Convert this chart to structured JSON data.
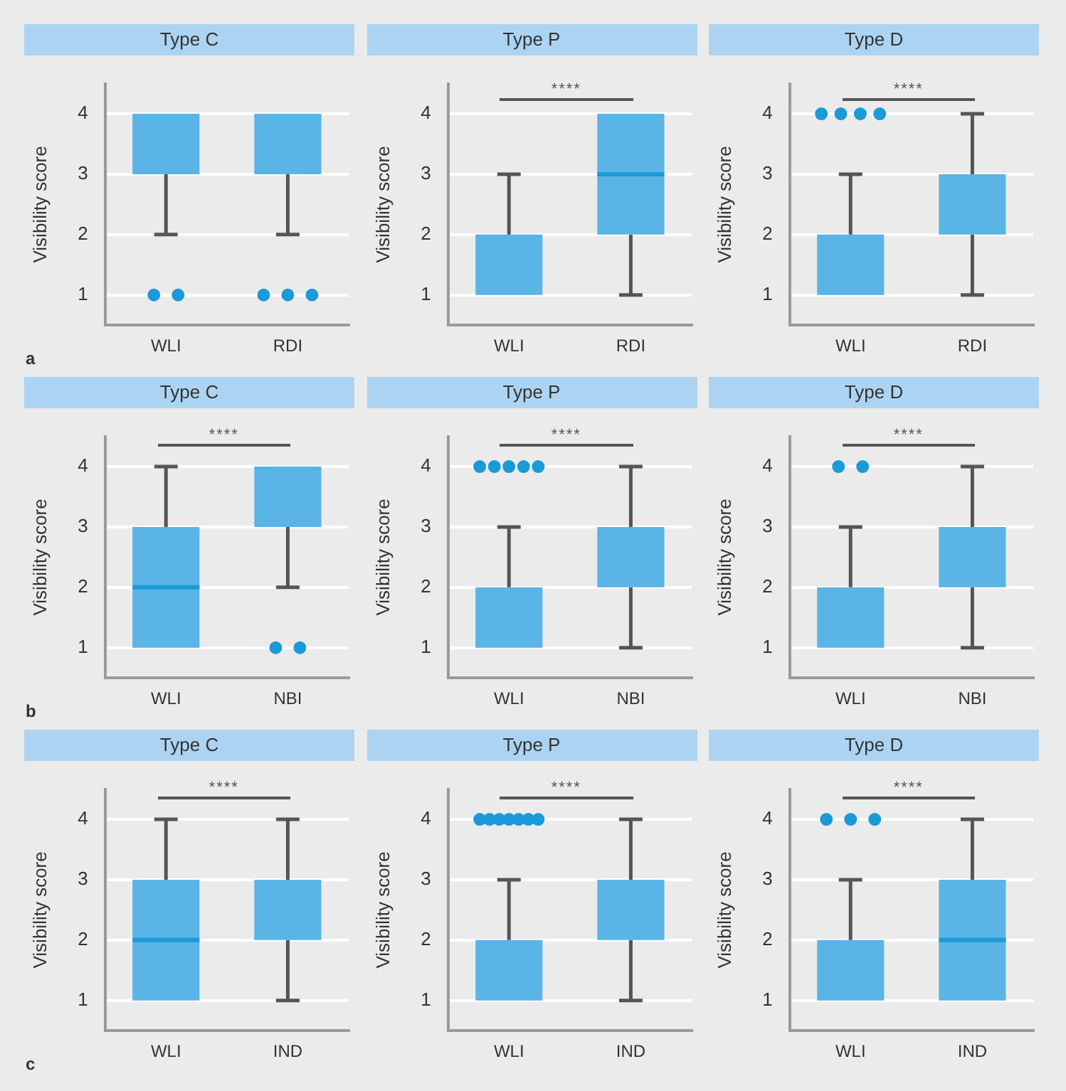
{
  "chart_data": [
    {
      "type": "box",
      "title": "Type C",
      "ylabel": "Visibility score",
      "categories": [
        "WLI",
        "RDI"
      ],
      "ylim": [
        0.5,
        4.5
      ],
      "yticks": [
        1,
        2,
        3,
        4
      ],
      "grid": "y",
      "annotations": [
        "a"
      ],
      "series": [
        {
          "color": "#5ab4e6",
          "boxes": [
            {
              "low": 2,
              "q1": 3,
              "median": 3,
              "q3": 4,
              "high": 4,
              "outliers": [
                1,
                1
              ]
            },
            {
              "low": 2,
              "q1": 3,
              "median": 3,
              "q3": 4,
              "high": 4,
              "outliers": [
                1,
                1,
                1
              ]
            }
          ]
        }
      ]
    },
    {
      "type": "box",
      "title": "Type P",
      "ylabel": "Visibility score",
      "categories": [
        "WLI",
        "RDI"
      ],
      "ylim": [
        0.5,
        4.5
      ],
      "yticks": [
        1,
        2,
        3,
        4
      ],
      "grid": "y",
      "annotations": [
        "****"
      ],
      "series": [
        {
          "color": "#5ab4e6",
          "boxes": [
            {
              "low": 1,
              "q1": 1,
              "median": 1,
              "q3": 2,
              "high": 3
            },
            {
              "low": 1,
              "q1": 2,
              "median": 3,
              "q3": 4,
              "high": 4
            }
          ]
        }
      ]
    },
    {
      "type": "box",
      "title": "Type D",
      "ylabel": "Visibility score",
      "categories": [
        "WLI",
        "RDI"
      ],
      "ylim": [
        0.5,
        4.5
      ],
      "yticks": [
        1,
        2,
        3,
        4
      ],
      "grid": "y",
      "annotations": [
        "****"
      ],
      "series": [
        {
          "color": "#5ab4e6",
          "boxes": [
            {
              "low": 1,
              "q1": 1,
              "median": 1,
              "q3": 2,
              "high": 3,
              "outliers": [
                4,
                4,
                4,
                4
              ]
            },
            {
              "low": 1,
              "q1": 2,
              "median": 2,
              "q3": 3,
              "high": 4
            }
          ]
        }
      ]
    },
    {
      "type": "box",
      "title": "Type C",
      "ylabel": "Visibility score",
      "categories": [
        "WLI",
        "NBI"
      ],
      "ylim": [
        0.5,
        4.5
      ],
      "yticks": [
        1,
        2,
        3,
        4
      ],
      "grid": "y",
      "annotations": [
        "****",
        "b"
      ],
      "series": [
        {
          "color": "#5ab4e6",
          "boxes": [
            {
              "low": 1,
              "q1": 1,
              "median": 2,
              "q3": 3,
              "high": 4
            },
            {
              "low": 2,
              "q1": 3,
              "median": 3,
              "q3": 4,
              "high": 4,
              "outliers": [
                1,
                1
              ]
            }
          ]
        }
      ]
    },
    {
      "type": "box",
      "title": "Type P",
      "ylabel": "Visibility score",
      "categories": [
        "WLI",
        "NBI"
      ],
      "ylim": [
        0.5,
        4.5
      ],
      "yticks": [
        1,
        2,
        3,
        4
      ],
      "grid": "y",
      "annotations": [
        "****"
      ],
      "series": [
        {
          "color": "#5ab4e6",
          "boxes": [
            {
              "low": 1,
              "q1": 1,
              "median": 1,
              "q3": 2,
              "high": 3,
              "outliers": [
                4,
                4,
                4,
                4,
                4
              ]
            },
            {
              "low": 1,
              "q1": 2,
              "median": 2,
              "q3": 3,
              "high": 4
            }
          ]
        }
      ]
    },
    {
      "type": "box",
      "title": "Type D",
      "ylabel": "Visibility score",
      "categories": [
        "WLI",
        "NBI"
      ],
      "ylim": [
        0.5,
        4.5
      ],
      "yticks": [
        1,
        2,
        3,
        4
      ],
      "grid": "y",
      "annotations": [
        "****"
      ],
      "series": [
        {
          "color": "#5ab4e6",
          "boxes": [
            {
              "low": 1,
              "q1": 1,
              "median": 1,
              "q3": 2,
              "high": 3,
              "outliers": [
                4,
                4
              ]
            },
            {
              "low": 1,
              "q1": 2,
              "median": 2,
              "q3": 3,
              "high": 4
            }
          ]
        }
      ]
    },
    {
      "type": "box",
      "title": "Type C",
      "ylabel": "Visibility score",
      "categories": [
        "WLI",
        "IND"
      ],
      "ylim": [
        0.5,
        4.5
      ],
      "yticks": [
        1,
        2,
        3,
        4
      ],
      "grid": "y",
      "annotations": [
        "****",
        "c"
      ],
      "series": [
        {
          "color": "#5ab4e6",
          "boxes": [
            {
              "low": 1,
              "q1": 1,
              "median": 2,
              "q3": 3,
              "high": 4
            },
            {
              "low": 1,
              "q1": 2,
              "median": 2,
              "q3": 3,
              "high": 4
            }
          ]
        }
      ]
    },
    {
      "type": "box",
      "title": "Type P",
      "ylabel": "Visibility score",
      "categories": [
        "WLI",
        "IND"
      ],
      "ylim": [
        0.5,
        4.5
      ],
      "yticks": [
        1,
        2,
        3,
        4
      ],
      "grid": "y",
      "annotations": [
        "****"
      ],
      "series": [
        {
          "color": "#5ab4e6",
          "boxes": [
            {
              "low": 1,
              "q1": 1,
              "median": 1,
              "q3": 2,
              "high": 3,
              "outliers": [
                4,
                4,
                4,
                4,
                4,
                4,
                4
              ]
            },
            {
              "low": 1,
              "q1": 2,
              "median": 2,
              "q3": 3,
              "high": 4
            }
          ]
        }
      ]
    },
    {
      "type": "box",
      "title": "Type D",
      "ylabel": "Visibility score",
      "categories": [
        "WLI",
        "IND"
      ],
      "ylim": [
        0.5,
        4.5
      ],
      "yticks": [
        1,
        2,
        3,
        4
      ],
      "grid": "y",
      "annotations": [
        "****"
      ],
      "series": [
        {
          "color": "#5ab4e6",
          "boxes": [
            {
              "low": 1,
              "q1": 1,
              "median": 1,
              "q3": 2,
              "high": 3,
              "outliers": [
                4,
                4,
                4
              ]
            },
            {
              "low": 1,
              "q1": 1,
              "median": 2,
              "q3": 3,
              "high": 4
            }
          ]
        }
      ]
    }
  ]
}
